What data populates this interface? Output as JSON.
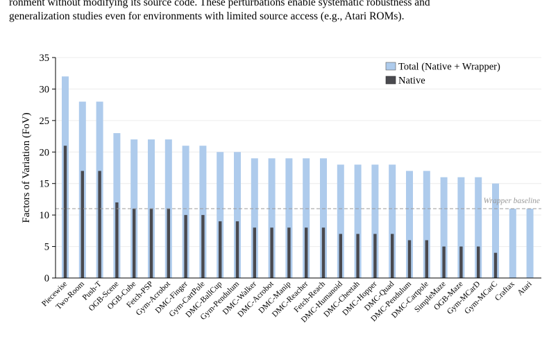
{
  "caption": {
    "line1": "ronment without modifying its source code. These perturbations enable systematic robustness and",
    "line2": "generalization studies even for environments with limited source access (e.g., Atari ROMs)."
  },
  "chart_data": {
    "type": "bar",
    "title": "",
    "xlabel": "",
    "ylabel": "Factors of Variation (FoV)",
    "ylim": [
      0,
      35
    ],
    "yticks": [
      0,
      5,
      10,
      15,
      20,
      25,
      30,
      35
    ],
    "grid": true,
    "legend_position": "top-right",
    "categories": [
      "Piecewise",
      "Two-Room",
      "Push-T",
      "OGB-Scene",
      "OGB-Cube",
      "Fetch-PSP",
      "Gym-Acrobot",
      "DMC-Finger",
      "Gym-CartPole",
      "DMC-BallCup",
      "Gym-Pendulum",
      "DMC-Walker",
      "DMC-Acrobot",
      "DMC-Manip",
      "DMC-Reacher",
      "Fetch-Reach",
      "DMC-Humanoid",
      "DMC-Cheetah",
      "DMC-Hopper",
      "DMC-Quad",
      "DMC-Pendulum",
      "DMC-Cartpole",
      "SimpleMaze",
      "OGB-Maze",
      "Gym-MCarD",
      "Gym-MCarC",
      "Craftax",
      "Atari"
    ],
    "series": [
      {
        "name": "Total (Native + Wrapper)",
        "color": "#aecbec",
        "values": [
          32,
          28,
          28,
          23,
          22,
          22,
          22,
          21,
          21,
          20,
          20,
          19,
          19,
          19,
          19,
          19,
          18,
          18,
          18,
          18,
          17,
          17,
          16,
          16,
          16,
          15,
          11,
          11
        ]
      },
      {
        "name": "Native",
        "color": "#4a4a4f",
        "values": [
          21,
          17,
          17,
          12,
          11,
          11,
          11,
          10,
          10,
          9,
          9,
          8,
          8,
          8,
          8,
          8,
          7,
          7,
          7,
          7,
          6,
          6,
          5,
          5,
          5,
          4,
          0,
          0
        ]
      }
    ],
    "baseline": {
      "value": 11,
      "label": "Wrapper baseline"
    }
  }
}
